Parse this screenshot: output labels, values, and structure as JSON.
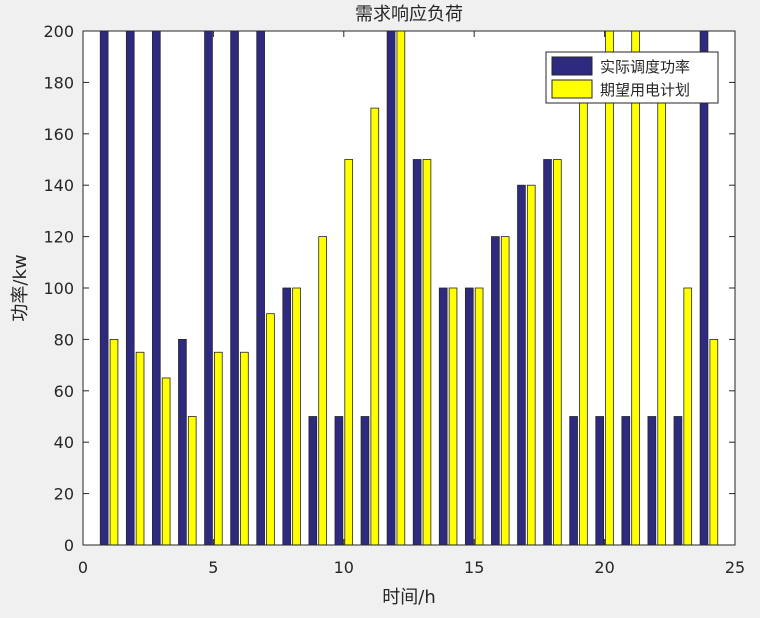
{
  "chart_data": {
    "type": "bar",
    "title": "需求响应负荷",
    "xlabel": "时间/h",
    "ylabel": "功率/kw",
    "xlim": [
      0,
      25
    ],
    "ylim": [
      0,
      200
    ],
    "xticks": [
      0,
      5,
      10,
      15,
      20,
      25
    ],
    "yticks": [
      0,
      20,
      40,
      60,
      80,
      100,
      120,
      140,
      160,
      180,
      200
    ],
    "xtick_labels": [
      "0",
      "5",
      "10",
      "15",
      "20",
      "25"
    ],
    "ytick_labels": [
      "0",
      "20",
      "40",
      "60",
      "80",
      "100",
      "120",
      "140",
      "160",
      "180",
      "200"
    ],
    "categories": [
      1,
      2,
      3,
      4,
      5,
      6,
      7,
      8,
      9,
      10,
      11,
      12,
      13,
      14,
      15,
      16,
      17,
      18,
      19,
      20,
      21,
      22,
      23,
      24
    ],
    "series": [
      {
        "name": "实际调度功率",
        "color": "#2e2a7f",
        "values": [
          200,
          200,
          200,
          80,
          200,
          200,
          200,
          100,
          50,
          50,
          50,
          200,
          150,
          100,
          100,
          120,
          140,
          150,
          50,
          50,
          50,
          50,
          50,
          200
        ]
      },
      {
        "name": "期望用电计划",
        "color": "#ffff00",
        "values": [
          80,
          75,
          65,
          50,
          75,
          75,
          90,
          100,
          120,
          150,
          170,
          200,
          150,
          100,
          100,
          120,
          140,
          150,
          180,
          200,
          200,
          180,
          100,
          80
        ]
      }
    ],
    "grid": false,
    "legend": "top-right"
  }
}
